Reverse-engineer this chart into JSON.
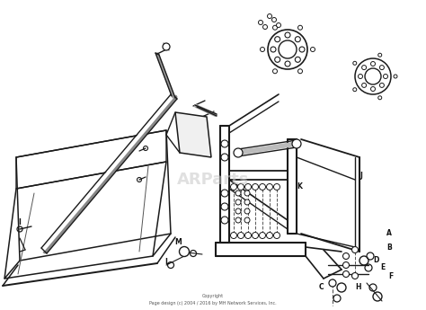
{
  "background_color": "#ffffff",
  "border_color": "#cccccc",
  "watermark_text": "ARParts",
  "copyright_line1": "Copyright",
  "copyright_line2": "Page design (c) 2004 / 2016 by MH Network Services, Inc.",
  "fig_width": 4.74,
  "fig_height": 3.45,
  "dpi": 100,
  "line_color": "#1a1a1a",
  "label_color": "#111111",
  "label_fontsize": 5.5,
  "watermark_color": "#c8c8c8",
  "watermark_alpha": 0.55,
  "watermark_fontsize": 13,
  "copyright_fontsize": 3.5,
  "copyright_color": "#555555"
}
